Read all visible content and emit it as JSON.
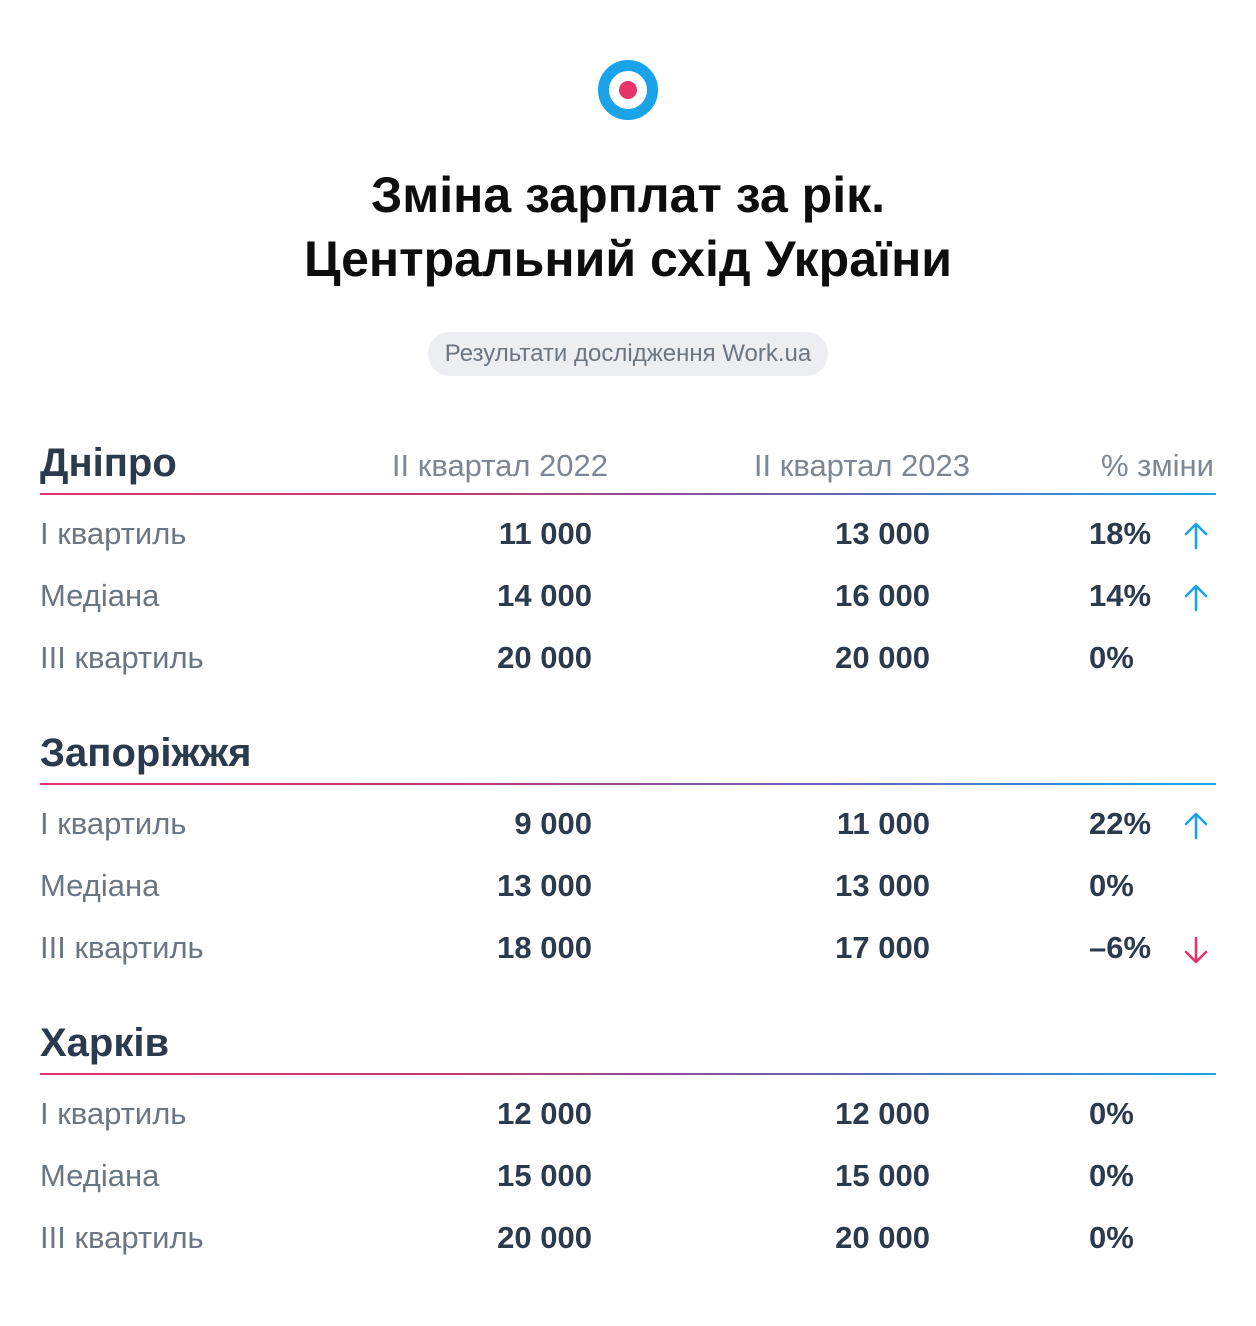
{
  "colors": {
    "accent_blue": "#1aa3e8",
    "accent_pink": "#e8336b",
    "text_dark": "#2c3a4e",
    "text_muted": "#6b7683"
  },
  "title_line1": "Зміна зарплат за рік.",
  "title_line2": "Центральний схід України",
  "badge": "Результати дослідження Work.ua",
  "columns": {
    "q2_2022": "II квартал 2022",
    "q2_2023": "II квартал 2023",
    "change": "% зміни"
  },
  "sections": [
    {
      "city": "Дніпро",
      "rows": [
        {
          "label": "I квартиль",
          "v2022": "11 000",
          "v2023": "13 000",
          "change": "18%",
          "trend": "up"
        },
        {
          "label": "Медіана",
          "v2022": "14 000",
          "v2023": "16 000",
          "change": "14%",
          "trend": "up"
        },
        {
          "label": "III квартиль",
          "v2022": "20 000",
          "v2023": "20 000",
          "change": "0%",
          "trend": "none"
        }
      ]
    },
    {
      "city": "Запоріжжя",
      "rows": [
        {
          "label": "I квартиль",
          "v2022": "9 000",
          "v2023": "11 000",
          "change": "22%",
          "trend": "up"
        },
        {
          "label": "Медіана",
          "v2022": "13 000",
          "v2023": "13 000",
          "change": "0%",
          "trend": "none"
        },
        {
          "label": "III квартиль",
          "v2022": "18 000",
          "v2023": "17 000",
          "change": "–6%",
          "trend": "down"
        }
      ]
    },
    {
      "city": "Харків",
      "rows": [
        {
          "label": "I квартиль",
          "v2022": "12 000",
          "v2023": "12 000",
          "change": "0%",
          "trend": "none"
        },
        {
          "label": "Медіана",
          "v2022": "15 000",
          "v2023": "15 000",
          "change": "0%",
          "trend": "none"
        },
        {
          "label": "III квартиль",
          "v2022": "20 000",
          "v2023": "20 000",
          "change": "0%",
          "trend": "none"
        }
      ]
    }
  ]
}
